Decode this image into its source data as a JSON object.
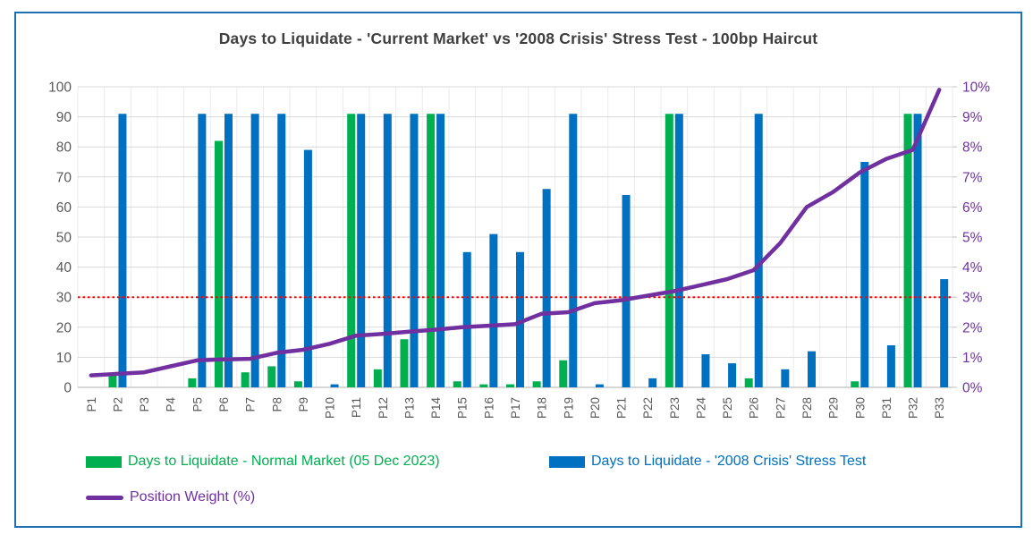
{
  "title": "Days to Liquidate - 'Current Market' vs '2008 Crisis' Stress Test - 100bp Haircut",
  "colors": {
    "frame_border": "#1F6FB5",
    "normal_green": "#00B050",
    "stress_blue": "#0070C0",
    "weight_purple": "#7030A0",
    "threshold_red": "#FF0000",
    "grid": "#D9D9D9",
    "vgrid": "#EBEBEB",
    "axis_text": "#595959",
    "title_text": "#3F3F3F"
  },
  "legend": {
    "normal_label": "Days to Liquidate - Normal Market (05 Dec 2023)",
    "stress_label": "Days to Liquidate - '2008 Crisis' Stress Test",
    "weight_label": "Position Weight (%)"
  },
  "chart_data": {
    "type": "bar",
    "subtype": "combo-bar-line-dual-axis",
    "title": "Days to Liquidate - 'Current Market' vs '2008 Crisis' Stress Test - 100bp Haircut",
    "grid": true,
    "legend_position": "bottom",
    "categories": [
      "P1",
      "P2",
      "P3",
      "P4",
      "P5",
      "P6",
      "P7",
      "P8",
      "P9",
      "P10",
      "P11",
      "P12",
      "P13",
      "P14",
      "P15",
      "P16",
      "P17",
      "P18",
      "P19",
      "P20",
      "P21",
      "P22",
      "P23",
      "P24",
      "P25",
      "P26",
      "P27",
      "P28",
      "P29",
      "P30",
      "P31",
      "P32",
      "P33"
    ],
    "series": [
      {
        "name": "Days to Liquidate - Normal Market (05 Dec 2023)",
        "type": "bar",
        "axis": "left",
        "color": "#00B050",
        "values": [
          0,
          4,
          0,
          0,
          3,
          82,
          5,
          7,
          2,
          0,
          91,
          6,
          16,
          91,
          2,
          1,
          1,
          2,
          9,
          0,
          0,
          0,
          91,
          0,
          0,
          3,
          0,
          0,
          0,
          2,
          0,
          91,
          0
        ]
      },
      {
        "name": "Days to Liquidate - '2008 Crisis' Stress Test",
        "type": "bar",
        "axis": "left",
        "color": "#0070C0",
        "values": [
          0,
          91,
          0,
          0,
          91,
          91,
          91,
          91,
          79,
          1,
          91,
          91,
          91,
          91,
          45,
          51,
          45,
          66,
          91,
          1,
          64,
          3,
          91,
          11,
          8,
          91,
          6,
          12,
          0,
          75,
          14,
          91,
          36
        ]
      },
      {
        "name": "Position Weight (%)",
        "type": "line",
        "axis": "right",
        "color": "#7030A0",
        "values": [
          0.4,
          0.45,
          0.5,
          0.7,
          0.9,
          0.93,
          0.95,
          1.15,
          1.25,
          1.45,
          1.72,
          1.78,
          1.85,
          1.92,
          2.0,
          2.05,
          2.1,
          2.45,
          2.5,
          2.8,
          2.9,
          3.05,
          3.2,
          3.4,
          3.6,
          3.9,
          4.8,
          6.0,
          6.5,
          7.15,
          7.6,
          7.9,
          9.9
        ]
      }
    ],
    "left_axis": {
      "min": 0,
      "max": 100,
      "step": 10,
      "ticks": [
        "0",
        "10",
        "20",
        "30",
        "40",
        "50",
        "60",
        "70",
        "80",
        "90",
        "100"
      ]
    },
    "right_axis": {
      "min": 0,
      "max": 10,
      "step": 1,
      "unit": "%",
      "ticks": [
        "0%",
        "1%",
        "2%",
        "3%",
        "4%",
        "5%",
        "6%",
        "7%",
        "8%",
        "9%",
        "10%"
      ]
    },
    "threshold_line": {
      "left_value": 30,
      "right_value": "3%",
      "color": "#FF0000",
      "style": "dotted"
    }
  }
}
